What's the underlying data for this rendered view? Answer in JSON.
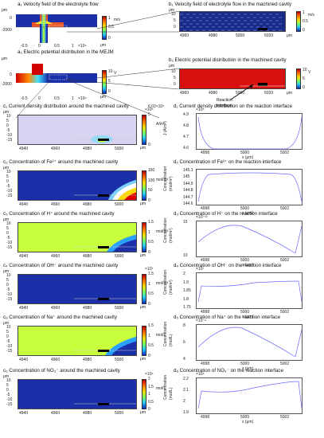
{
  "titles": {
    "a1": "a₁ Velocity field of the electrolyte flow",
    "a2": "a₂ Electric potential distribution in the MEJM",
    "b1": "b₁ Velocity field of electrolyte flow in the machined cavity",
    "b2": "b₂ Electric potential distribution in the machined cavity",
    "c1": "c₁ Current density distribution around the machined cavity",
    "c2": "c₂ Concentration of Fe²⁺ around the machined cavity",
    "c3": "c₃ Concentration of H⁺ around the machined cavity",
    "c4": "c₄ Concentration of OH⁻ around the machined cavity",
    "c5": "c₅ Concentration of Na⁺ around the machined cavity",
    "c6": "c₆ Concentration of NO₃⁻ around the machined cavity",
    "d1": "d₁ Current density distribution on the reaction interface",
    "d2": "d₂ Concentration of Fe³⁺ on the reaction interface",
    "d3": "d₃ Concentration of H⁺ on the reaction interface",
    "d4": "d₄ Concentration of OH⁻ on the reaction interface",
    "d5": "d₅ Concentration of Na⁺ on the reaction interface",
    "d6": "d₆ Concentration of NO₃⁻ on the reaction interface"
  },
  "units": {
    "um": "μm",
    "ms": "m/s",
    "v": "V",
    "am2": "A/m²",
    "molm3": "mol/m³",
    "moll": "mol/L"
  },
  "ticks": {
    "a_x": [
      "-0.5",
      "0",
      "0.5",
      "1"
    ],
    "a_xexp": "×10⁴",
    "a1_y": [
      "0",
      "-2000"
    ],
    "a2_y": [
      "0",
      "-2000"
    ],
    "b_x": [
      "4960",
      "4980",
      "5000",
      "5020"
    ],
    "b_y": [
      "10",
      "5",
      "0"
    ],
    "c_x": [
      "4940",
      "4960",
      "4980",
      "5000"
    ],
    "c_y": [
      "10",
      "5",
      "0",
      "-5",
      "-10",
      "-15"
    ],
    "d_x": [
      "4998",
      "5000",
      "5002"
    ],
    "d1_y": [
      "4.9",
      "4.8",
      "4.7",
      "4.6"
    ],
    "d2_y": [
      "145.1",
      "145",
      "144.9",
      "144.8",
      "144.7",
      "144.6"
    ],
    "d3_y": [
      "15",
      "10"
    ],
    "d4_y": [
      "2",
      "1.9",
      "1.85",
      "1.8",
      "1.75"
    ],
    "d5_y": [
      "8",
      "6",
      "4"
    ],
    "d6_y": [
      "2.2",
      "2.1",
      "2",
      "1.9"
    ]
  },
  "colorbars": {
    "a1": [
      "1",
      "0.5",
      "0"
    ],
    "b1": [
      "1",
      "0.5",
      "0"
    ],
    "a2": [
      "10",
      "5",
      "0"
    ],
    "b2": [
      "10",
      "5",
      "0"
    ],
    "c1_top": "6.02×10⁵",
    "c1_exp": "×10⁵",
    "c1": [
      "5",
      "0"
    ],
    "c2": [
      "150",
      "100",
      "50",
      "0"
    ],
    "c3": [
      "1.5",
      "1",
      "0.5",
      "0"
    ],
    "c4_exp": "×10⁷",
    "c4": [
      "1.5",
      "1",
      "0.5",
      "0"
    ],
    "c5": [
      "1.5",
      "1",
      "0.5",
      "0"
    ],
    "c6_exp": "×10⁶",
    "c6": [
      "2",
      "1.5",
      "1",
      "0.5",
      "0"
    ]
  },
  "d_labels": {
    "xlabel": "x (μm)",
    "d1_ylabel": "J (A/m²)",
    "conc": "Concentration",
    "d2_unit": "(mol/m³)",
    "d3_unit": "(mol/m³)",
    "d4_unit": "(mol/m³)",
    "d5_unit": "(mol/L)",
    "d6_unit": "(mol/L)",
    "d1_exp": "×10⁵",
    "d3_exp": "×10⁻¹³",
    "d4_exp": "×10⁷",
    "d5_exp": "×10⁻⁹",
    "d6_exp": "×10⁶"
  },
  "annotation": {
    "reaction": "Reaction",
    "interface": "interface"
  }
}
